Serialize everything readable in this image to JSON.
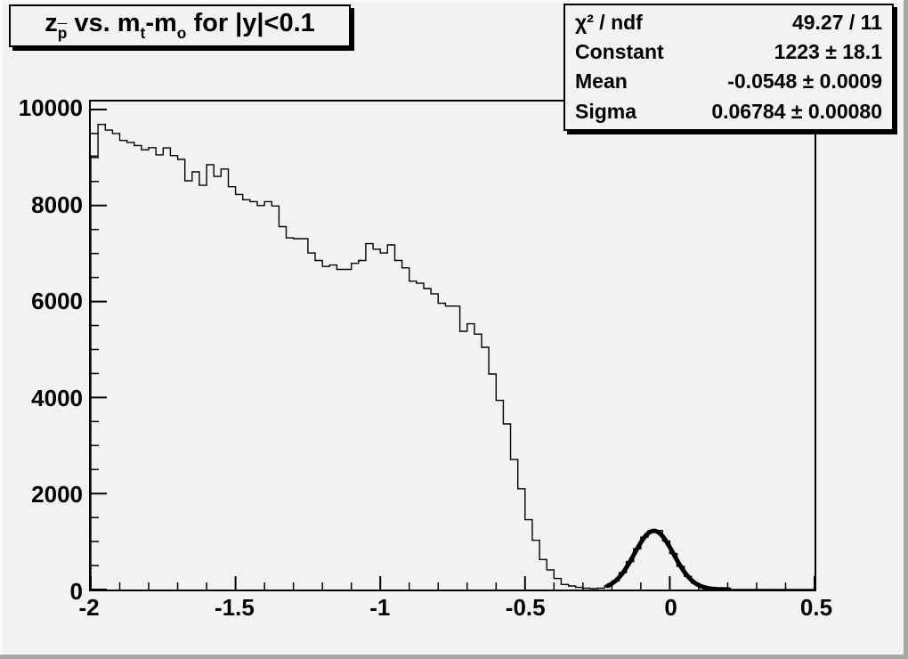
{
  "colors": {
    "canvas_bg": "#f2f2f2",
    "frame_bg": "#f2f2f2",
    "line_color": "#000000",
    "bevel_light": "#fbfbfb",
    "bevel_dark": "#a6a6a6"
  },
  "title": {
    "plain": "z_p̄ vs. m_t-m_o for |y|<0.1",
    "parts": [
      {
        "text": "z"
      },
      {
        "sub": "p",
        "overline": true
      },
      {
        "text": " vs. m"
      },
      {
        "sub": "t",
        "overline": false
      },
      {
        "text": "-m"
      },
      {
        "sub": "o",
        "overline": false
      },
      {
        "text": " for |y|<0.1"
      }
    ]
  },
  "stats": {
    "rows": [
      {
        "label": "χ² / ndf",
        "value": "49.27 / 11"
      },
      {
        "label": "Constant",
        "value": "1223 ± 18.1"
      },
      {
        "label": "Mean",
        "value": "-0.0548 ± 0.0009"
      },
      {
        "label": "Sigma",
        "value": "0.06784 ± 0.00080"
      }
    ]
  },
  "chart_data": {
    "type": "bar",
    "subtype": "step-histogram",
    "title": "z_p̄ vs. m_t-m_o for |y|<0.1",
    "xlabel": "",
    "ylabel": "",
    "xlim": [
      -2.0,
      0.5
    ],
    "ylim": [
      0,
      10166
    ],
    "grid": false,
    "legend_position": "stats-box-top-right",
    "bin_start": -2.0,
    "bin_width": 0.025,
    "values": [
      9030,
      9690,
      9570,
      9500,
      9355,
      9315,
      9250,
      9160,
      9205,
      9055,
      9200,
      9040,
      8960,
      8515,
      8700,
      8420,
      8850,
      8605,
      8760,
      8390,
      8230,
      8120,
      8080,
      8000,
      8080,
      7990,
      7560,
      7325,
      7310,
      7310,
      7010,
      6855,
      6730,
      6760,
      6670,
      6670,
      6795,
      6855,
      7205,
      7090,
      7010,
      7180,
      6855,
      6700,
      6425,
      6380,
      6270,
      6160,
      5965,
      5905,
      5905,
      5380,
      5535,
      5320,
      5045,
      4490,
      3940,
      3450,
      2710,
      2100,
      1455,
      1025,
      625,
      410,
      230,
      105,
      75,
      45,
      30,
      20,
      30,
      80,
      180,
      350,
      580,
      850,
      1090,
      1225,
      1230,
      1010,
      750,
      485,
      275,
      135,
      60,
      22,
      8,
      3,
      1,
      0,
      0,
      0,
      0,
      0,
      0,
      0,
      0,
      0,
      0,
      0
    ],
    "fit": {
      "type": "gaussian",
      "constant": 1223,
      "mean": -0.0548,
      "sigma": 0.06784,
      "draw_range": [
        -0.215,
        0.205
      ],
      "line_width": 5
    },
    "x_ticks": [
      {
        "v": -2.0,
        "label": "-2"
      },
      {
        "v": -1.5,
        "label": "-1.5"
      },
      {
        "v": -1.0,
        "label": "-1"
      },
      {
        "v": -0.5,
        "label": "-0.5"
      },
      {
        "v": 0.0,
        "label": "0"
      },
      {
        "v": 0.5,
        "label": "0.5"
      }
    ],
    "y_ticks": [
      {
        "v": 0,
        "label": "0"
      },
      {
        "v": 2000,
        "label": "2000"
      },
      {
        "v": 4000,
        "label": "4000"
      },
      {
        "v": 6000,
        "label": "6000"
      },
      {
        "v": 8000,
        "label": "8000"
      },
      {
        "v": 10000,
        "label": "10000"
      }
    ],
    "x_minor_step": 0.1,
    "y_minor_step": 500
  }
}
